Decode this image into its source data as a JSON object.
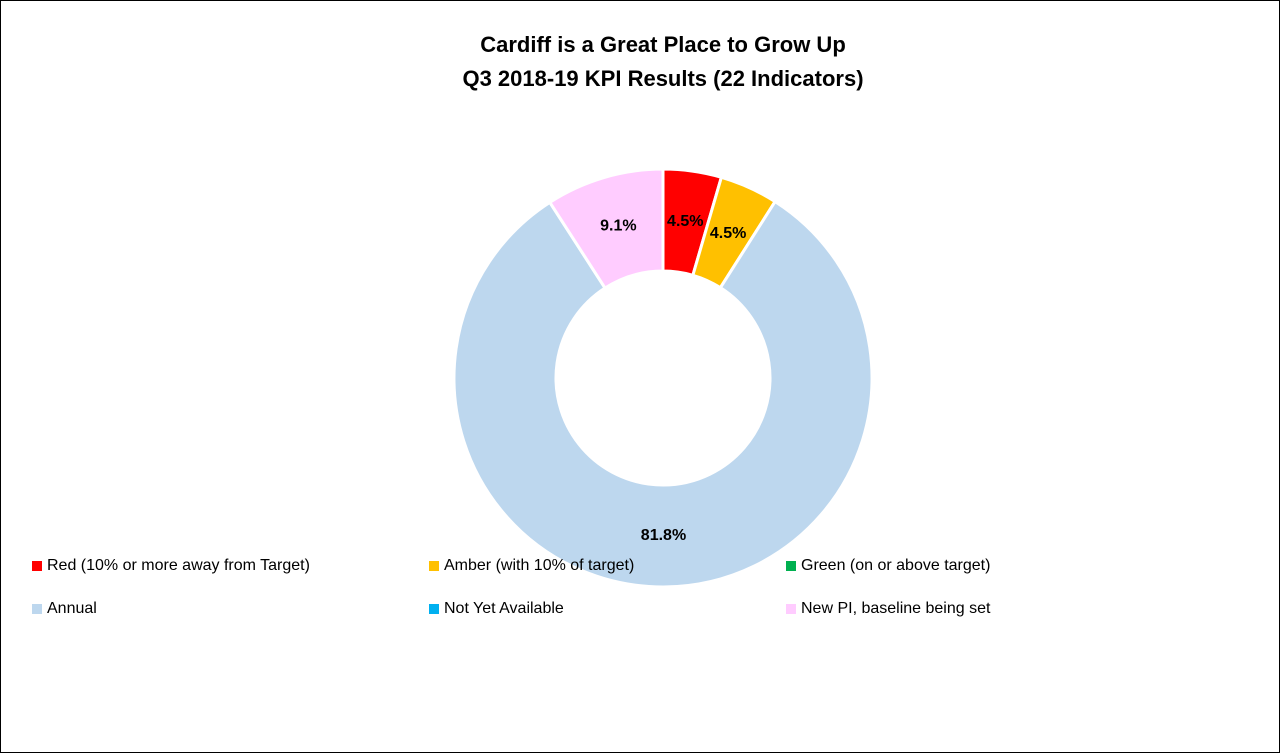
{
  "chart_data": {
    "type": "donut",
    "title": "Cardiff is a Great Place to Grow Up",
    "subtitle": "Q3 2018-19 KPI Results (22 Indicators)",
    "categories": [
      "Red (10% or more away from Target)",
      "Amber (with 10% of target)",
      "Green (on or above target)",
      "Annual",
      "Not Yet Available",
      "New PI, baseline being set"
    ],
    "values": [
      4.5,
      4.5,
      0,
      81.8,
      0,
      9.1
    ],
    "value_labels": [
      "4.5%",
      "4.5%",
      null,
      "81.8%",
      null,
      "9.1%"
    ],
    "colors": [
      "#ff0000",
      "#ffc000",
      "#00b050",
      "#bdd7ee",
      "#00b0f0",
      "#ffccff"
    ],
    "legend": "bottom"
  }
}
